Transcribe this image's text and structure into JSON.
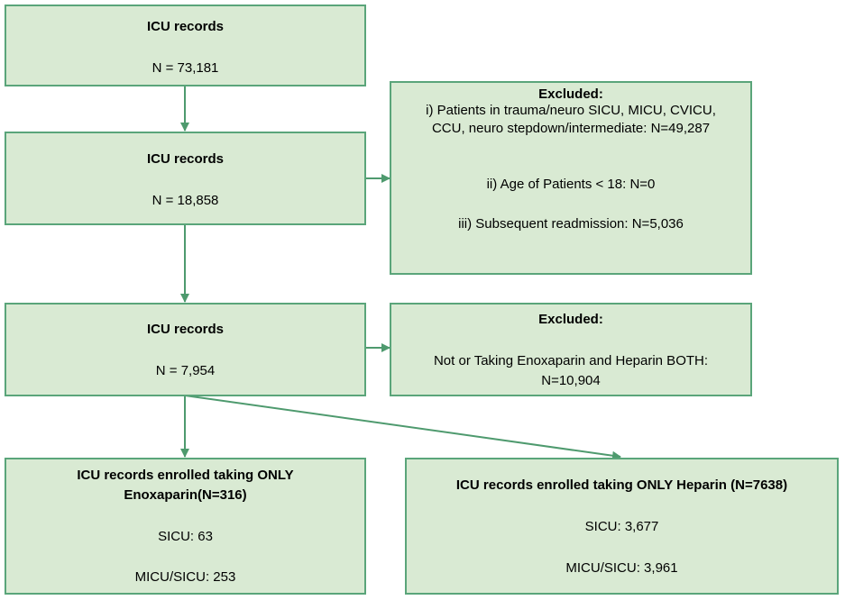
{
  "colors": {
    "box_fill": "#d9ead3",
    "box_border": "#5aa57a",
    "arrow": "#4e9a6e"
  },
  "box1": {
    "title": "ICU records",
    "count": "N = 73,181"
  },
  "box2": {
    "title": "ICU records",
    "count": "N = 18,858"
  },
  "excluded1": {
    "title": "Excluded:",
    "line1": "i) Patients in trauma/neuro SICU, MICU, CVICU,",
    "line2": "CCU, neuro stepdown/intermediate: N=49,287",
    "line3": "ii) Age of Patients < 18:  N=0",
    "line4": "iii) Subsequent readmission: N=5,036"
  },
  "box3": {
    "title": "ICU records",
    "count": "N = 7,954"
  },
  "excluded2": {
    "title": "Excluded:",
    "line1": "Not or Taking Enoxaparin and Heparin BOTH:",
    "line2": "N=10,904"
  },
  "enox": {
    "title_line1": "ICU records enrolled taking ONLY",
    "title_line2": "Enoxaparin(N=316)",
    "sicu": "SICU: 63",
    "micu": "MICU/SICU: 253"
  },
  "hep": {
    "title": "ICU records enrolled taking ONLY Heparin (N=7638)",
    "sicu": "SICU: 3,677",
    "micu": "MICU/SICU: 3,961"
  }
}
